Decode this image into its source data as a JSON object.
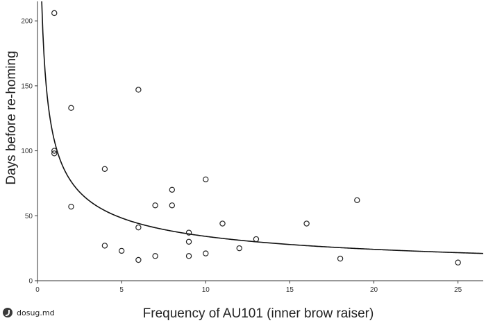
{
  "chart_data": {
    "type": "scatter",
    "title": "",
    "xlabel": "Frequency of AU101 (inner brow raiser)",
    "ylabel": "Days before re-homing",
    "xlim": [
      0,
      26.5
    ],
    "ylim": [
      0,
      215
    ],
    "x_ticks": [
      0,
      5,
      10,
      15,
      20,
      25
    ],
    "y_ticks": [
      0,
      50,
      100,
      150,
      200
    ],
    "grid": false,
    "legend": "none",
    "series": [
      {
        "points": [
          {
            "x": 1,
            "y": 206
          },
          {
            "x": 1,
            "y": 100
          },
          {
            "x": 1,
            "y": 98
          },
          {
            "x": 2,
            "y": 133
          },
          {
            "x": 2,
            "y": 57
          },
          {
            "x": 4,
            "y": 86
          },
          {
            "x": 4,
            "y": 27
          },
          {
            "x": 5,
            "y": 23
          },
          {
            "x": 6,
            "y": 147
          },
          {
            "x": 6,
            "y": 41
          },
          {
            "x": 6,
            "y": 16
          },
          {
            "x": 7,
            "y": 58
          },
          {
            "x": 7,
            "y": 19
          },
          {
            "x": 8,
            "y": 70
          },
          {
            "x": 8,
            "y": 58
          },
          {
            "x": 9,
            "y": 37
          },
          {
            "x": 9,
            "y": 30
          },
          {
            "x": 9,
            "y": 19
          },
          {
            "x": 10,
            "y": 78
          },
          {
            "x": 10,
            "y": 21
          },
          {
            "x": 11,
            "y": 44
          },
          {
            "x": 12,
            "y": 25
          },
          {
            "x": 13,
            "y": 32
          },
          {
            "x": 16,
            "y": 44
          },
          {
            "x": 18,
            "y": 17
          },
          {
            "x": 19,
            "y": 62
          },
          {
            "x": 25,
            "y": 14
          }
        ]
      }
    ],
    "fit": {
      "type": "power",
      "a": 108,
      "b": -0.5
    }
  },
  "watermark": {
    "text": "dosug.md",
    "icon": "logo-icon"
  }
}
